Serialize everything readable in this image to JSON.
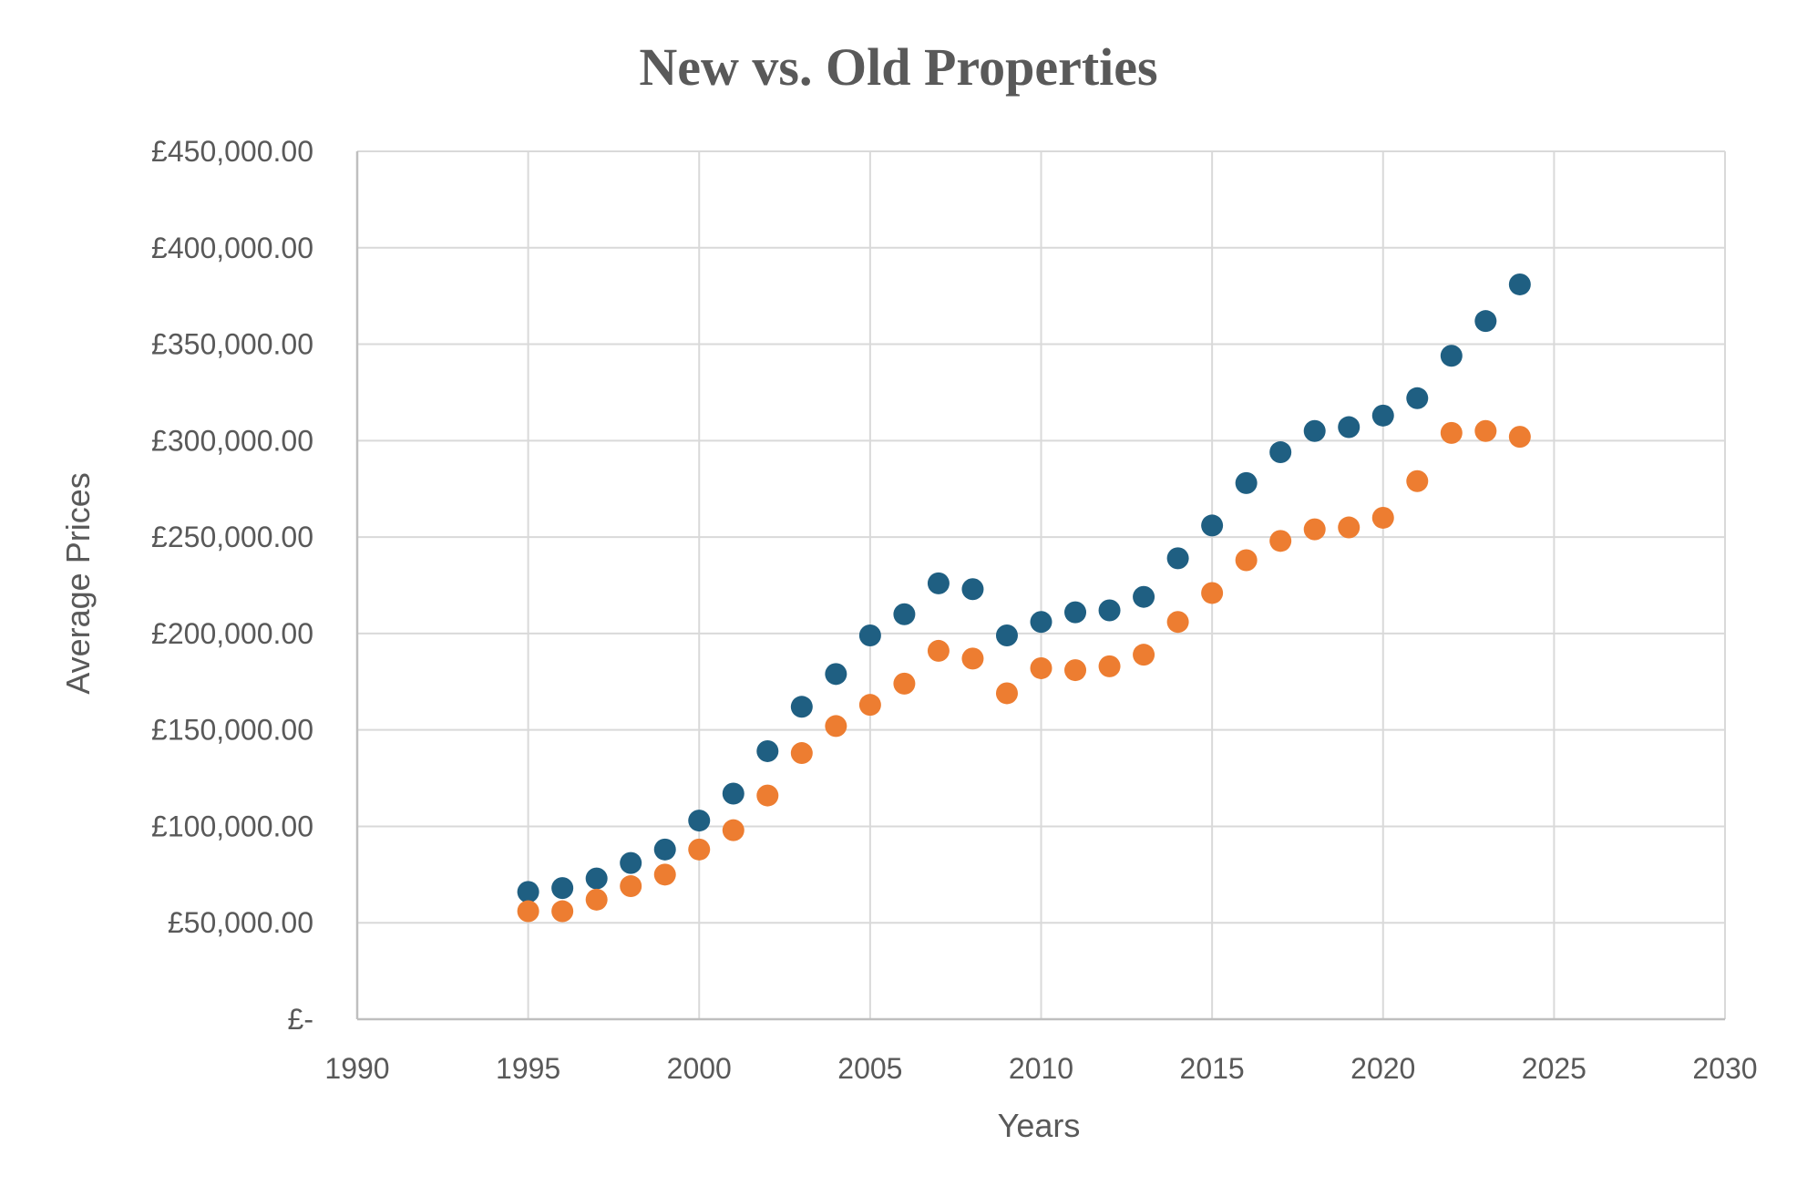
{
  "chart_data": {
    "type": "scatter",
    "title": "New vs. Old Properties",
    "xlabel": "Years",
    "ylabel": "Average Prices",
    "xlim": [
      1990,
      2030
    ],
    "ylim": [
      0,
      450000
    ],
    "x_ticks": [
      "1990",
      "1995",
      "2000",
      "2005",
      "2010",
      "2015",
      "2020",
      "2025",
      "2030"
    ],
    "y_ticks": [
      "£-",
      "£50,000.00",
      "£100,000.00",
      "£150,000.00",
      "£200,000.00",
      "£250,000.00",
      "£300,000.00",
      "£350,000.00",
      "£400,000.00",
      "£450,000.00"
    ],
    "grid": true,
    "legend": "none",
    "x": [
      1995,
      1996,
      1997,
      1998,
      1999,
      2000,
      2001,
      2002,
      2003,
      2004,
      2005,
      2006,
      2007,
      2008,
      2009,
      2010,
      2011,
      2012,
      2013,
      2014,
      2015,
      2016,
      2017,
      2018,
      2019,
      2020,
      2021,
      2022,
      2023,
      2024
    ],
    "series": [
      {
        "color": "#1f5f82",
        "values": [
          66000,
          68000,
          73000,
          81000,
          88000,
          103000,
          117000,
          139000,
          162000,
          179000,
          199000,
          210000,
          226000,
          223000,
          199000,
          206000,
          211000,
          212000,
          219000,
          239000,
          256000,
          278000,
          294000,
          305000,
          307000,
          313000,
          322000,
          344000,
          362000,
          381000
        ]
      },
      {
        "color": "#ed7d31",
        "values": [
          56000,
          56000,
          62000,
          69000,
          75000,
          88000,
          98000,
          116000,
          138000,
          152000,
          163000,
          174000,
          191000,
          187000,
          169000,
          182000,
          181000,
          183000,
          189000,
          206000,
          221000,
          238000,
          248000,
          254000,
          255000,
          260000,
          279000,
          304000,
          305000,
          302000
        ]
      }
    ]
  }
}
